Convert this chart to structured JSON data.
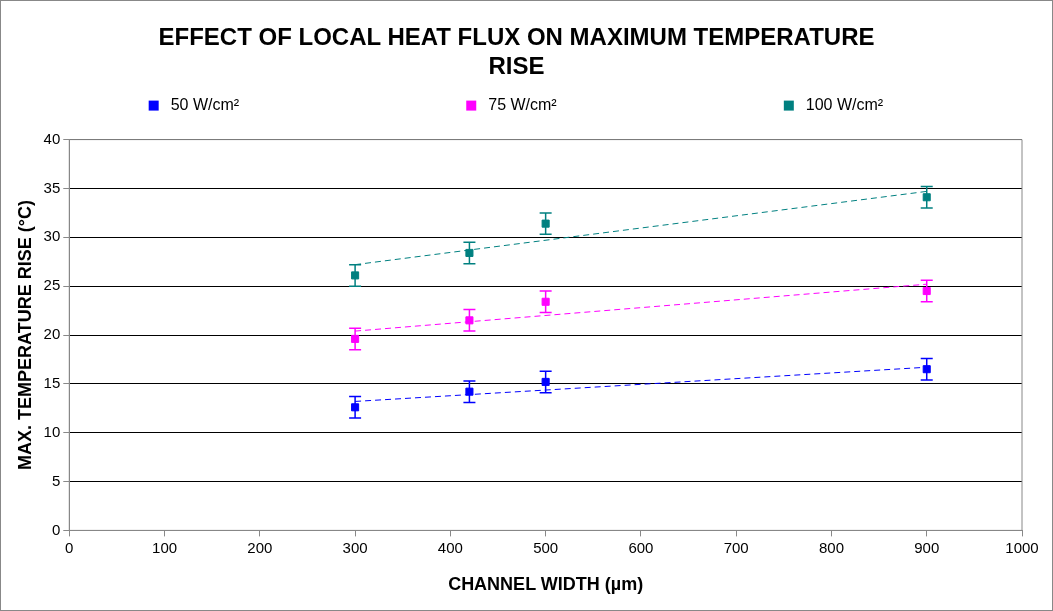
{
  "chart_data": {
    "type": "scatter",
    "title": "EFFECT OF LOCAL HEAT FLUX ON MAXIMUM TEMPERATURE RISE",
    "xlabel": "CHANNEL WIDTH (µm)",
    "ylabel": "MAX. TEMPERATURE RISE (°C)",
    "xlim": [
      0,
      1000
    ],
    "xticks": [
      0,
      100,
      200,
      300,
      400,
      500,
      600,
      700,
      800,
      900,
      1000
    ],
    "ylim": [
      0,
      40
    ],
    "yticks": [
      0,
      5,
      10,
      15,
      20,
      25,
      30,
      35,
      40
    ],
    "grid": "y",
    "legend": "top",
    "marker": "square",
    "series": [
      {
        "name": "50 W/cm²",
        "color": "#0000ff",
        "x": [
          300,
          420,
          500,
          900
        ],
        "values": [
          12.6,
          14.2,
          15.2,
          16.5
        ],
        "errors": [
          1.1,
          1.1,
          1.1,
          1.1
        ]
      },
      {
        "name": "75 W/cm²",
        "color": "#ff00ff",
        "x": [
          300,
          420,
          500,
          900
        ],
        "values": [
          19.6,
          21.5,
          23.4,
          24.5
        ],
        "errors": [
          1.1,
          1.1,
          1.1,
          1.1
        ]
      },
      {
        "name": "100 W/cm²",
        "color": "#008080",
        "x": [
          300,
          420,
          500,
          900
        ],
        "values": [
          26.1,
          28.4,
          31.4,
          34.1
        ],
        "errors": [
          1.1,
          1.1,
          1.1,
          1.1
        ]
      },
      {
        "type": "line",
        "color": "#0000ff",
        "x": [
          300,
          900
        ],
        "values": [
          13.2,
          16.7
        ],
        "marker": "none",
        "line_style": "dashed"
      },
      {
        "type": "line",
        "color": "#ff00ff",
        "x": [
          300,
          900
        ],
        "values": [
          20.4,
          25.2
        ],
        "marker": "none",
        "line_style": "dashed"
      },
      {
        "type": "line",
        "color": "#008080",
        "x": [
          300,
          900
        ],
        "values": [
          27.2,
          34.7
        ],
        "marker": "none",
        "line_style": "dashed"
      }
    ]
  }
}
